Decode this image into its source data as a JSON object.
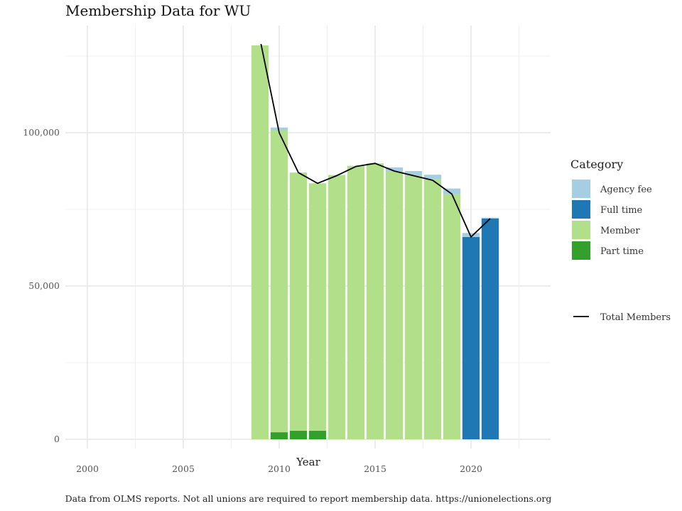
{
  "chart_data": {
    "type": "bar",
    "title": "Membership Data for WU",
    "xlabel": "Year",
    "ylabel": "",
    "caption": "Data from OLMS reports. Not all unions are required to report membership data. https://unionelections.org",
    "xlim": [
      1999,
      2024
    ],
    "ylim": [
      -3000,
      135000
    ],
    "x_ticks": [
      2000,
      2005,
      2010,
      2015,
      2020
    ],
    "x_tick_labels": [
      "2000",
      "2005",
      "2010",
      "2015",
      "2020"
    ],
    "y_ticks": [
      0,
      50000,
      100000
    ],
    "y_tick_labels": [
      "0",
      "50,000",
      "100,000"
    ],
    "grid": true,
    "stacked": true,
    "legend_position": "right",
    "legend_title": "Category",
    "years": [
      2009,
      2010,
      2011,
      2012,
      2013,
      2014,
      2015,
      2016,
      2017,
      2018,
      2019,
      2020,
      2021
    ],
    "series": [
      {
        "name": "Part time",
        "color": "#33a02c",
        "values": [
          0,
          2300,
          2800,
          2800,
          0,
          0,
          0,
          0,
          0,
          0,
          0,
          0,
          0
        ]
      },
      {
        "name": "Member",
        "color": "#b2df8a",
        "values": [
          128500,
          98500,
          84000,
          80700,
          86200,
          89200,
          90000,
          87500,
          86000,
          84800,
          80000,
          0,
          0
        ]
      },
      {
        "name": "Full time",
        "color": "#1f78b4",
        "values": [
          0,
          0,
          0,
          0,
          0,
          0,
          0,
          0,
          0,
          0,
          0,
          66000,
          72000
        ]
      },
      {
        "name": "Agency fee",
        "color": "#a6cee3",
        "values": [
          0,
          900,
          200,
          0,
          0,
          0,
          0,
          1200,
          1500,
          1500,
          1800,
          1300,
          300
        ]
      }
    ],
    "line": {
      "name": "Total Members",
      "color": "#000000",
      "values": [
        130500,
        100000,
        87000,
        83500,
        86000,
        89000,
        90000,
        87500,
        86000,
        84500,
        80000,
        66000,
        72000
      ]
    },
    "legend_items": [
      {
        "label": "Agency fee",
        "color": "#a6cee3"
      },
      {
        "label": "Full time",
        "color": "#1f78b4"
      },
      {
        "label": "Member",
        "color": "#b2df8a"
      },
      {
        "label": "Part time",
        "color": "#33a02c"
      }
    ]
  }
}
